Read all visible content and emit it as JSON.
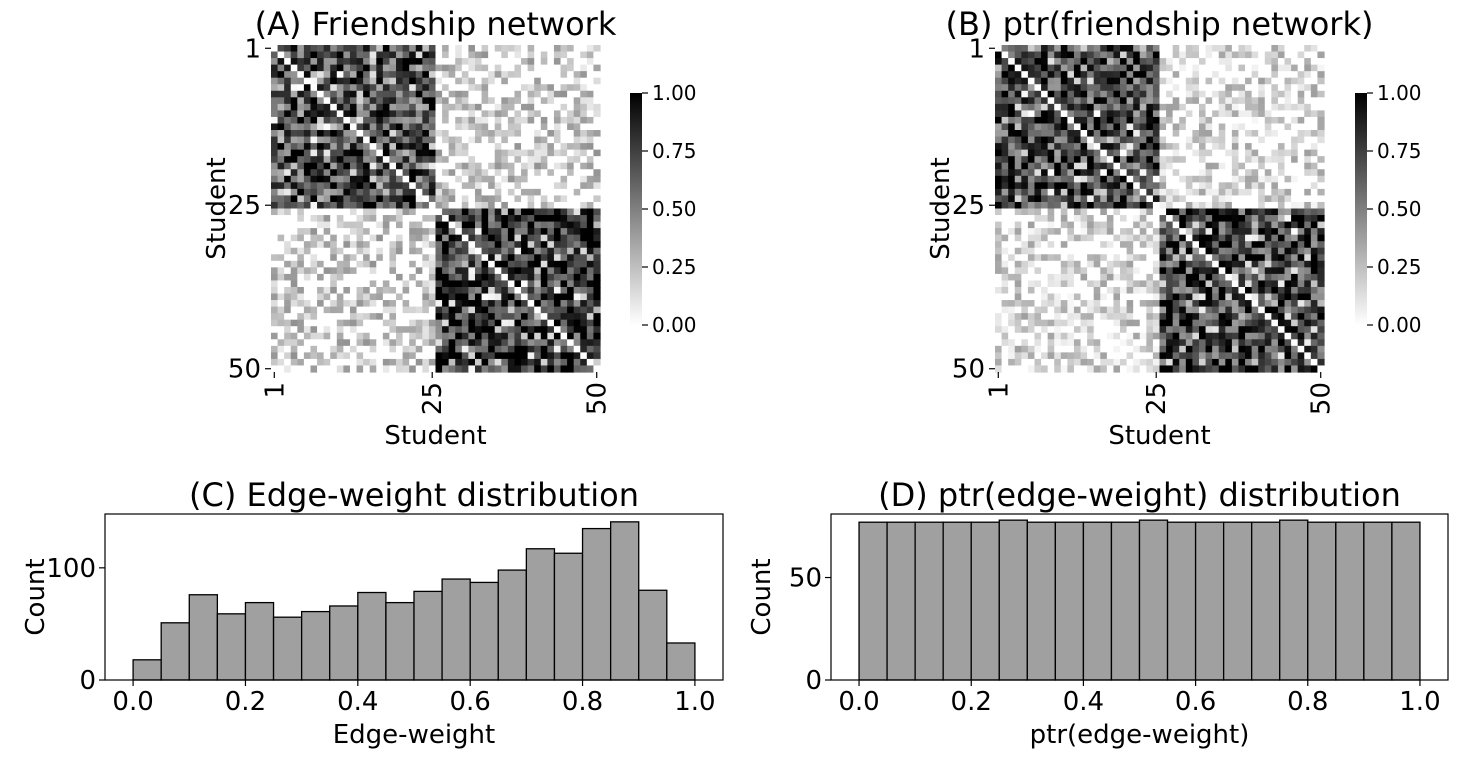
{
  "chart_data": [
    {
      "panel": "A",
      "type": "heatmap",
      "title": "(A) Friendship network",
      "xlabel": "Student",
      "ylabel": "Student",
      "n": 50,
      "xticks": [
        "1",
        "25",
        "50"
      ],
      "yticks": [
        "1",
        "25",
        "50"
      ],
      "colormap": "white-to-black",
      "vmin": 0.0,
      "vmax": 1.0,
      "colorbar_ticks": [
        "0.00",
        "0.25",
        "0.50",
        "0.75",
        "1.00"
      ],
      "blocks": [
        {
          "rows": "1-25",
          "cols": "1-25",
          "typical_value": 0.7
        },
        {
          "rows": "26-50",
          "cols": "26-50",
          "typical_value": 0.8
        },
        {
          "rows": "1-25",
          "cols": "26-50",
          "typical_value": 0.15
        },
        {
          "rows": "26-50",
          "cols": "1-25",
          "typical_value": 0.15
        }
      ],
      "diagonal": 0.0
    },
    {
      "panel": "B",
      "type": "heatmap",
      "title": "(B) ptr(friendship network)",
      "xlabel": "Student",
      "ylabel": "Student",
      "n": 50,
      "xticks": [
        "1",
        "25",
        "50"
      ],
      "yticks": [
        "1",
        "25",
        "50"
      ],
      "colormap": "white-to-black",
      "vmin": 0.0,
      "vmax": 1.0,
      "colorbar_ticks": [
        "0.00",
        "0.25",
        "0.50",
        "0.75",
        "1.00"
      ],
      "blocks": [
        {
          "rows": "1-25",
          "cols": "1-25",
          "typical_value": 0.72
        },
        {
          "rows": "26-50",
          "cols": "26-50",
          "typical_value": 0.75
        },
        {
          "rows": "1-25",
          "cols": "26-50",
          "typical_value": 0.1
        },
        {
          "rows": "26-50",
          "cols": "1-25",
          "typical_value": 0.1
        }
      ],
      "diagonal": 0.0
    },
    {
      "panel": "C",
      "type": "bar",
      "title": "(C) Edge-weight distribution",
      "xlabel": "Edge-weight",
      "ylabel": "Count",
      "bin_edges": [
        0.0,
        0.05,
        0.1,
        0.15,
        0.2,
        0.25,
        0.3,
        0.35,
        0.4,
        0.45,
        0.5,
        0.55,
        0.6,
        0.65,
        0.7,
        0.75,
        0.8,
        0.85,
        0.9,
        0.95,
        1.0
      ],
      "values": [
        18,
        51,
        76,
        59,
        69,
        56,
        61,
        66,
        78,
        69,
        79,
        90,
        87,
        98,
        117,
        113,
        135,
        141,
        80,
        33
      ],
      "xlim": [
        -0.05,
        1.05
      ],
      "ylim": [
        0,
        148
      ],
      "xticks": [
        "0.0",
        "0.2",
        "0.4",
        "0.6",
        "0.8",
        "1.0"
      ],
      "yticks": [
        "0",
        "100"
      ],
      "bar_color": "#a0a0a0",
      "edge_color": "#000000"
    },
    {
      "panel": "D",
      "type": "bar",
      "title": "(D) ptr(edge-weight) distribution",
      "xlabel": "ptr(edge-weight)",
      "ylabel": "Count",
      "bin_edges": [
        0.0,
        0.05,
        0.1,
        0.15,
        0.2,
        0.25,
        0.3,
        0.35,
        0.4,
        0.45,
        0.5,
        0.55,
        0.6,
        0.65,
        0.7,
        0.75,
        0.8,
        0.85,
        0.9,
        0.95,
        1.0
      ],
      "values": [
        77,
        77,
        77,
        77,
        77,
        78,
        77,
        77,
        77,
        77,
        78,
        77,
        77,
        77,
        77,
        78,
        77,
        77,
        77,
        77
      ],
      "xlim": [
        -0.05,
        1.05
      ],
      "ylim": [
        0,
        81
      ],
      "xticks": [
        "0.0",
        "0.2",
        "0.4",
        "0.6",
        "0.8",
        "1.0"
      ],
      "yticks": [
        "0",
        "50"
      ],
      "bar_color": "#a0a0a0",
      "edge_color": "#000000"
    }
  ]
}
